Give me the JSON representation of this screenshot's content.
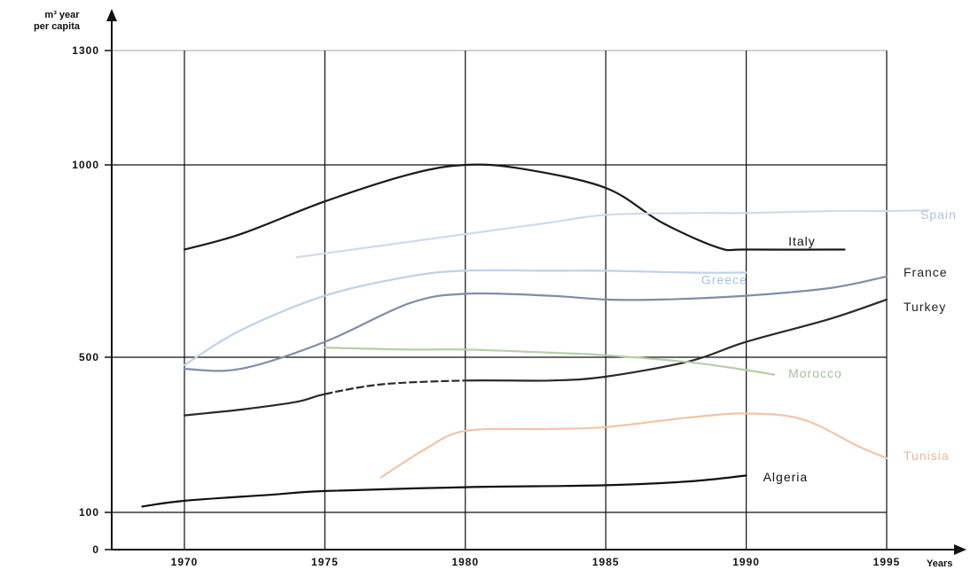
{
  "chart_data": {
    "type": "line",
    "title": "",
    "ylabel": "m³ year per capita",
    "xlabel": "Years",
    "ylim": [
      0,
      1300
    ],
    "xlim": [
      1967.5,
      1997.5
    ],
    "y_ticks": [
      {
        "value": 0,
        "label": "0"
      },
      {
        "value": 100,
        "label": "100"
      },
      {
        "value": 500,
        "label": "500"
      },
      {
        "value": 1000,
        "label": "1000"
      },
      {
        "value": 1300,
        "label": "1300"
      }
    ],
    "x_ticks": [
      {
        "value": 1970,
        "label": "1970"
      },
      {
        "value": 1975,
        "label": "1975"
      },
      {
        "value": 1980,
        "label": "1980"
      },
      {
        "value": 1985,
        "label": "1985"
      },
      {
        "value": 1990,
        "label": "1990"
      },
      {
        "value": 1995,
        "label": "1995"
      }
    ],
    "grid": true,
    "series": [
      {
        "name": "Italy",
        "color": "#1a1a1a",
        "label_color": "#111111",
        "x": [
          1970,
          1972,
          1975,
          1978,
          1980,
          1982,
          1985,
          1987,
          1989,
          1990,
          1993.5
        ],
        "y": [
          780,
          820,
          905,
          975,
          1000,
          990,
          940,
          850,
          785,
          780,
          780
        ]
      },
      {
        "name": "Spain",
        "color": "#cddcec",
        "label_color": "#aec4dc",
        "x": [
          1974,
          1977,
          1980,
          1983,
          1985,
          1988,
          1990,
          1993,
          1995,
          1996.5
        ],
        "y": [
          760,
          790,
          820,
          850,
          870,
          875,
          875,
          880,
          880,
          882
        ]
      },
      {
        "name": "France",
        "color": "#7d8ea8",
        "label_color": "#222222",
        "x": [
          1970,
          1972,
          1975,
          1978,
          1980,
          1983,
          1985,
          1987,
          1990,
          1993,
          1995
        ],
        "y": [
          470,
          470,
          540,
          640,
          665,
          660,
          650,
          650,
          660,
          680,
          710
        ]
      },
      {
        "name": "Greece",
        "color": "#bcd2ea",
        "label_color": "#a9c2de",
        "x": [
          1970,
          1972,
          1975,
          1978,
          1980,
          1983,
          1985,
          1988,
          1990
        ],
        "y": [
          480,
          570,
          660,
          710,
          725,
          725,
          725,
          720,
          720
        ]
      },
      {
        "name": "Turkey",
        "color": "#2a2a2a",
        "label_color": "#222222",
        "x": [
          1970,
          1972,
          1974,
          1975,
          1977,
          1980,
          1983,
          1985,
          1988,
          1990,
          1993,
          1995
        ],
        "y": [
          350,
          365,
          385,
          405,
          430,
          440,
          440,
          450,
          490,
          540,
          600,
          650
        ]
      },
      {
        "name": "Morocco",
        "color": "#b6cfa6",
        "label_color": "#a5c196",
        "x": [
          1975,
          1978,
          1980,
          1983,
          1985,
          1988,
          1990,
          1991
        ],
        "y": [
          525,
          520,
          520,
          512,
          505,
          487,
          467,
          455
        ]
      },
      {
        "name": "Tunisia",
        "color": "#f2c4a6",
        "label_color": "#efb694",
        "x": [
          1977,
          1978.5,
          1980,
          1983,
          1985,
          1988,
          1990,
          1992,
          1994,
          1995
        ],
        "y": [
          190,
          260,
          310,
          315,
          320,
          345,
          355,
          340,
          270,
          240
        ]
      },
      {
        "name": "Algeria",
        "color": "#111111",
        "label_color": "#111111",
        "x": [
          1968.5,
          1970,
          1973,
          1975,
          1980,
          1985,
          1988,
          1990
        ],
        "y": [
          115,
          130,
          145,
          155,
          165,
          170,
          180,
          195
        ]
      }
    ],
    "labels": [
      {
        "series": "Italy",
        "x": 1991.5,
        "y": 790
      },
      {
        "series": "Spain",
        "x": 1996.2,
        "y": 860
      },
      {
        "series": "France",
        "x": 1995.6,
        "y": 710
      },
      {
        "series": "Greece",
        "x": 1988.4,
        "y": 690
      },
      {
        "series": "Turkey",
        "x": 1995.6,
        "y": 620
      },
      {
        "series": "Morocco",
        "x": 1991.5,
        "y": 448
      },
      {
        "series": "Tunisia",
        "x": 1995.6,
        "y": 235
      },
      {
        "series": "Algeria",
        "x": 1990.6,
        "y": 180
      }
    ]
  }
}
